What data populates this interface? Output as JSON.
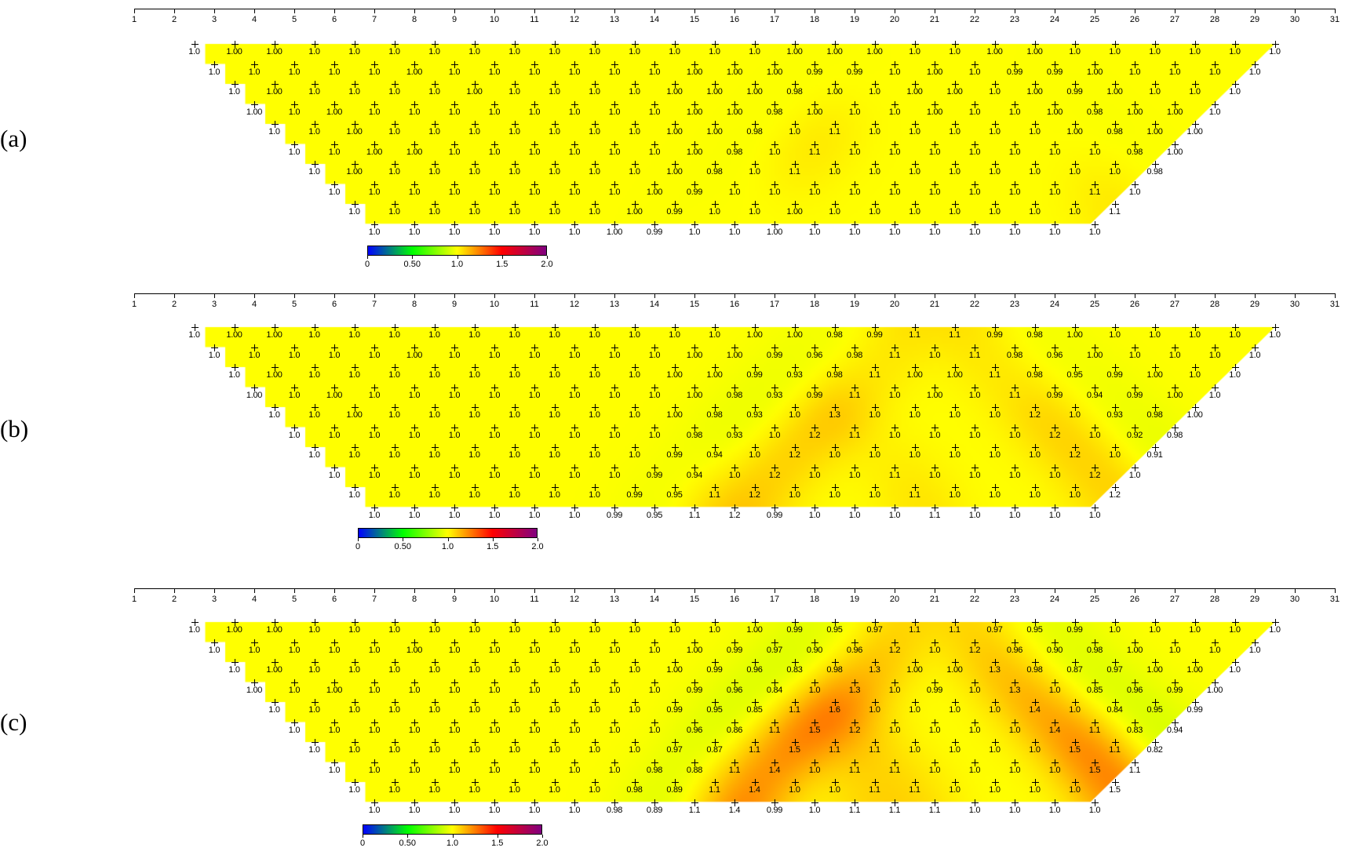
{
  "chart_data": {
    "type": "heatmap",
    "xlim": [
      1,
      31
    ],
    "x_ticks": [
      "1",
      "2",
      "3",
      "4",
      "5",
      "6",
      "7",
      "8",
      "9",
      "10",
      "11",
      "12",
      "13",
      "14",
      "15",
      "16",
      "17",
      "18",
      "19",
      "20",
      "21",
      "22",
      "23",
      "24",
      "25",
      "26",
      "27",
      "28",
      "29",
      "30",
      "31"
    ],
    "colorbar": {
      "range": [
        0,
        2.0
      ],
      "ticks": [
        "0",
        "0.50",
        "1.0",
        "1.5",
        "2.0"
      ],
      "colors": [
        "#0000ff",
        "#00ff00",
        "#ffff00",
        "#ff0000",
        "#800080"
      ]
    },
    "panels": [
      {
        "label": "(a)",
        "rows": [
          [
            "1.0",
            "1.00",
            "1.00",
            "1.0",
            "1.0",
            "1.0",
            "1.0",
            "1.0",
            "1.0",
            "1.0",
            "1.0",
            "1.0",
            "1.0",
            "1.0",
            "1.0",
            "1.00",
            "1.00",
            "1.00",
            "1.0",
            "1.0",
            "1.00",
            "1.00",
            "1.0",
            "1.0",
            "1.0",
            "1.0",
            "1.0",
            "1.0"
          ],
          [
            "1.0",
            "1.0",
            "1.0",
            "1.0",
            "1.0",
            "1.00",
            "1.0",
            "1.0",
            "1.0",
            "1.0",
            "1.0",
            "1.0",
            "1.00",
            "1.00",
            "1.00",
            "0.99",
            "0.99",
            "1.0",
            "1.00",
            "1.0",
            "0.99",
            "0.99",
            "1.00",
            "1.0",
            "1.0",
            "1.0",
            "1.0"
          ],
          [
            "1.0",
            "1.00",
            "1.0",
            "1.0",
            "1.0",
            "1.0",
            "1.00",
            "1.0",
            "1.0",
            "1.0",
            "1.0",
            "1.00",
            "1.00",
            "1.00",
            "0.98",
            "1.00",
            "1.0",
            "1.00",
            "1.00",
            "1.0",
            "1.00",
            "0.99",
            "1.00",
            "1.0",
            "1.0",
            "1.0"
          ],
          [
            "1.00",
            "1.0",
            "1.00",
            "1.0",
            "1.0",
            "1.0",
            "1.0",
            "1.0",
            "1.0",
            "1.0",
            "1.0",
            "1.00",
            "1.00",
            "0.98",
            "1.00",
            "1.0",
            "1.0",
            "1.00",
            "1.0",
            "1.0",
            "1.00",
            "0.98",
            "1.00",
            "1.00",
            "1.0"
          ],
          [
            "1.0",
            "1.0",
            "1.00",
            "1.0",
            "1.0",
            "1.0",
            "1.0",
            "1.0",
            "1.0",
            "1.0",
            "1.00",
            "1.00",
            "0.98",
            "1.0",
            "1.1",
            "1.0",
            "1.0",
            "1.0",
            "1.0",
            "1.0",
            "1.00",
            "0.98",
            "1.00",
            "1.00"
          ],
          [
            "1.0",
            "1.0",
            "1.00",
            "1.00",
            "1.0",
            "1.0",
            "1.0",
            "1.0",
            "1.0",
            "1.0",
            "1.00",
            "0.98",
            "1.0",
            "1.1",
            "1.0",
            "1.0",
            "1.0",
            "1.0",
            "1.0",
            "1.0",
            "1.0",
            "0.98",
            "1.00"
          ],
          [
            "1.0",
            "1.00",
            "1.0",
            "1.0",
            "1.0",
            "1.0",
            "1.0",
            "1.0",
            "1.0",
            "1.00",
            "0.98",
            "1.0",
            "1.1",
            "1.0",
            "1.0",
            "1.0",
            "1.0",
            "1.0",
            "1.0",
            "1.0",
            "1.0",
            "0.98"
          ],
          [
            "1.0",
            "1.0",
            "1.0",
            "1.0",
            "1.0",
            "1.0",
            "1.0",
            "1.0",
            "1.00",
            "0.99",
            "1.0",
            "1.0",
            "1.0",
            "1.0",
            "1.0",
            "1.0",
            "1.0",
            "1.0",
            "1.0",
            "1.1",
            "1.0"
          ],
          [
            "1.0",
            "1.0",
            "1.0",
            "1.0",
            "1.0",
            "1.0",
            "1.0",
            "1.00",
            "0.99",
            "1.0",
            "1.0",
            "1.00",
            "1.0",
            "1.0",
            "1.0",
            "1.0",
            "1.0",
            "1.0",
            "1.0",
            "1.1"
          ],
          [
            "1.0",
            "1.0",
            "1.0",
            "1.0",
            "1.0",
            "1.0",
            "1.00",
            "0.99",
            "1.0",
            "1.0",
            "1.00",
            "1.0",
            "1.0",
            "1.0",
            "1.0",
            "1.0",
            "1.0",
            "1.0",
            "1.0"
          ]
        ]
      },
      {
        "label": "(b)",
        "rows": [
          [
            "1.0",
            "1.00",
            "1.00",
            "1.0",
            "1.0",
            "1.0",
            "1.0",
            "1.0",
            "1.0",
            "1.0",
            "1.0",
            "1.0",
            "1.0",
            "1.0",
            "1.00",
            "1.00",
            "0.98",
            "0.99",
            "1.1",
            "1.1",
            "0.99",
            "0.98",
            "1.00",
            "1.0",
            "1.0",
            "1.0",
            "1.0",
            "1.0"
          ],
          [
            "1.0",
            "1.0",
            "1.0",
            "1.0",
            "1.0",
            "1.00",
            "1.0",
            "1.0",
            "1.0",
            "1.0",
            "1.0",
            "1.0",
            "1.00",
            "1.00",
            "0.99",
            "0.96",
            "0.98",
            "1.1",
            "1.0",
            "1.1",
            "0.98",
            "0.96",
            "1.00",
            "1.0",
            "1.0",
            "1.0",
            "1.0"
          ],
          [
            "1.0",
            "1.00",
            "1.0",
            "1.0",
            "1.0",
            "1.0",
            "1.0",
            "1.0",
            "1.0",
            "1.0",
            "1.0",
            "1.00",
            "1.00",
            "0.99",
            "0.93",
            "0.98",
            "1.1",
            "1.00",
            "1.00",
            "1.1",
            "0.98",
            "0.95",
            "0.99",
            "1.00",
            "1.0",
            "1.0"
          ],
          [
            "1.00",
            "1.0",
            "1.00",
            "1.0",
            "1.0",
            "1.0",
            "1.0",
            "1.0",
            "1.0",
            "1.0",
            "1.0",
            "1.00",
            "0.98",
            "0.93",
            "0.99",
            "1.1",
            "1.0",
            "1.00",
            "1.0",
            "1.1",
            "0.99",
            "0.94",
            "0.99",
            "1.00",
            "1.0"
          ],
          [
            "1.0",
            "1.0",
            "1.00",
            "1.0",
            "1.0",
            "1.0",
            "1.0",
            "1.0",
            "1.0",
            "1.0",
            "1.00",
            "0.98",
            "0.93",
            "1.0",
            "1.3",
            "1.0",
            "1.0",
            "1.0",
            "1.0",
            "1.2",
            "1.0",
            "0.93",
            "0.98",
            "1.00"
          ],
          [
            "1.0",
            "1.0",
            "1.0",
            "1.0",
            "1.0",
            "1.0",
            "1.0",
            "1.0",
            "1.0",
            "1.0",
            "0.98",
            "0.93",
            "1.0",
            "1.2",
            "1.1",
            "1.0",
            "1.0",
            "1.0",
            "1.0",
            "1.2",
            "1.0",
            "0.92",
            "0.98"
          ],
          [
            "1.0",
            "1.0",
            "1.0",
            "1.0",
            "1.0",
            "1.0",
            "1.0",
            "1.0",
            "1.0",
            "0.99",
            "0.94",
            "1.0",
            "1.2",
            "1.0",
            "1.0",
            "1.0",
            "1.0",
            "1.0",
            "1.0",
            "1.2",
            "1.0",
            "0.91"
          ],
          [
            "1.0",
            "1.0",
            "1.0",
            "1.0",
            "1.0",
            "1.0",
            "1.0",
            "1.0",
            "0.99",
            "0.94",
            "1.0",
            "1.2",
            "1.0",
            "1.0",
            "1.1",
            "1.0",
            "1.0",
            "1.0",
            "1.0",
            "1.2",
            "1.0"
          ],
          [
            "1.0",
            "1.0",
            "1.0",
            "1.0",
            "1.0",
            "1.0",
            "1.0",
            "0.99",
            "0.95",
            "1.1",
            "1.2",
            "1.0",
            "1.0",
            "1.0",
            "1.1",
            "1.0",
            "1.0",
            "1.0",
            "1.0",
            "1.2"
          ],
          [
            "1.0",
            "1.0",
            "1.0",
            "1.0",
            "1.0",
            "1.0",
            "0.99",
            "0.95",
            "1.1",
            "1.2",
            "0.99",
            "1.0",
            "1.0",
            "1.0",
            "1.1",
            "1.0",
            "1.0",
            "1.0",
            "1.0"
          ]
        ]
      },
      {
        "label": "(c)",
        "rows": [
          [
            "1.0",
            "1.00",
            "1.00",
            "1.0",
            "1.0",
            "1.0",
            "1.0",
            "1.0",
            "1.0",
            "1.0",
            "1.0",
            "1.0",
            "1.0",
            "1.0",
            "1.00",
            "0.99",
            "0.95",
            "0.97",
            "1.1",
            "1.1",
            "0.97",
            "0.95",
            "0.99",
            "1.0",
            "1.0",
            "1.0",
            "1.0",
            "1.0"
          ],
          [
            "1.0",
            "1.0",
            "1.0",
            "1.0",
            "1.0",
            "1.00",
            "1.0",
            "1.0",
            "1.0",
            "1.0",
            "1.0",
            "1.0",
            "1.00",
            "0.99",
            "0.97",
            "0.90",
            "0.96",
            "1.2",
            "1.0",
            "1.2",
            "0.96",
            "0.90",
            "0.98",
            "1.00",
            "1.0",
            "1.0",
            "1.0"
          ],
          [
            "1.0",
            "1.00",
            "1.0",
            "1.0",
            "1.0",
            "1.0",
            "1.0",
            "1.0",
            "1.0",
            "1.0",
            "1.0",
            "1.00",
            "0.99",
            "0.96",
            "0.83",
            "0.98",
            "1.3",
            "1.00",
            "1.00",
            "1.3",
            "0.98",
            "0.87",
            "0.97",
            "1.00",
            "1.00",
            "1.0"
          ],
          [
            "1.00",
            "1.0",
            "1.00",
            "1.0",
            "1.0",
            "1.0",
            "1.0",
            "1.0",
            "1.0",
            "1.0",
            "1.0",
            "0.99",
            "0.96",
            "0.84",
            "1.0",
            "1.3",
            "1.0",
            "0.99",
            "1.0",
            "1.3",
            "1.0",
            "0.85",
            "0.96",
            "0.99",
            "1.00"
          ],
          [
            "1.0",
            "1.0",
            "1.0",
            "1.0",
            "1.0",
            "1.0",
            "1.0",
            "1.0",
            "1.0",
            "1.0",
            "0.99",
            "0.95",
            "0.85",
            "1.1",
            "1.6",
            "1.0",
            "1.0",
            "1.0",
            "1.0",
            "1.4",
            "1.0",
            "0.84",
            "0.95",
            "0.99"
          ],
          [
            "1.0",
            "1.0",
            "1.0",
            "1.0",
            "1.0",
            "1.0",
            "1.0",
            "1.0",
            "1.0",
            "1.0",
            "0.96",
            "0.86",
            "1.1",
            "1.5",
            "1.2",
            "1.0",
            "1.0",
            "1.0",
            "1.0",
            "1.4",
            "1.1",
            "0.83",
            "0.94"
          ],
          [
            "1.0",
            "1.0",
            "1.0",
            "1.0",
            "1.0",
            "1.0",
            "1.0",
            "1.0",
            "1.0",
            "0.97",
            "0.87",
            "1.1",
            "1.5",
            "1.1",
            "1.1",
            "1.0",
            "1.0",
            "1.0",
            "1.0",
            "1.5",
            "1.1",
            "0.82"
          ],
          [
            "1.0",
            "1.0",
            "1.0",
            "1.0",
            "1.0",
            "1.0",
            "1.0",
            "1.0",
            "0.98",
            "0.88",
            "1.1",
            "1.4",
            "1.0",
            "1.1",
            "1.1",
            "1.0",
            "1.0",
            "1.0",
            "1.0",
            "1.5",
            "1.1"
          ],
          [
            "1.0",
            "1.0",
            "1.0",
            "1.0",
            "1.0",
            "1.0",
            "1.0",
            "0.98",
            "0.89",
            "1.1",
            "1.4",
            "1.0",
            "1.0",
            "1.1",
            "1.1",
            "1.0",
            "1.0",
            "1.0",
            "1.0",
            "1.5"
          ],
          [
            "1.0",
            "1.0",
            "1.0",
            "1.0",
            "1.0",
            "1.0",
            "0.98",
            "0.89",
            "1.1",
            "1.4",
            "0.99",
            "1.0",
            "1.1",
            "1.1",
            "1.1",
            "1.0",
            "1.0",
            "1.0",
            "1.0"
          ]
        ]
      }
    ]
  }
}
